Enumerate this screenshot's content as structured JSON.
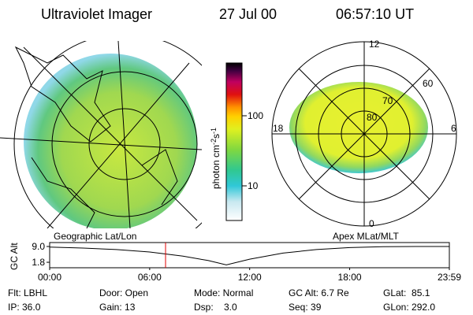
{
  "header": {
    "title": "Ultraviolet Imager",
    "date": "27 Jul 00",
    "time": "06:57:10 UT"
  },
  "colorbar": {
    "unit": [
      "photon cm",
      "-2",
      "s",
      "-1"
    ],
    "ticks": [
      "100",
      "10"
    ]
  },
  "polar": {
    "mlt_labels": [
      "12",
      "18",
      "6",
      "0"
    ],
    "lat_labels": [
      "60",
      "70",
      "80"
    ]
  },
  "panel_labels": [
    "Geographic Lat/Lon",
    "Apex MLat/MLT"
  ],
  "timeline": {
    "ylabel": "GC Alt",
    "xlim": [
      0,
      23.98
    ],
    "ylim": [
      -0.7,
      10.8
    ],
    "yticks": [
      {
        "value": 9,
        "label": "9.0"
      },
      {
        "value": 1.8,
        "label": "1.8"
      }
    ],
    "xticks": [
      {
        "value": 0,
        "label": "00:00"
      },
      {
        "value": 6,
        "label": "06:00"
      },
      {
        "value": 12,
        "label": "12:00"
      },
      {
        "value": 18,
        "label": "18:00"
      },
      {
        "value": 23.98,
        "label": "23:59"
      }
    ],
    "x": [
      0,
      2,
      4,
      6,
      8,
      9.5,
      10.6,
      12,
      14,
      16,
      18,
      20,
      22,
      23.98
    ],
    "values": [
      8.7,
      8.3,
      7.6,
      6.5,
      4.6,
      2.6,
      0.6,
      3.2,
      6.0,
      7.6,
      8.5,
      8.9,
      9.0,
      9.0
    ],
    "current_time": 6.953,
    "marker_color": "#e00000"
  },
  "footer": [
    [
      "Flt: LBHL",
      "Door: Open",
      "Mode: Normal",
      "GC Alt: 6.7 Re",
      "GLat:  85.1"
    ],
    [
      "IP: 36.0",
      "Gain: 13",
      "Dsp:    3.0",
      "Seq: 39",
      "GLon: 292.0"
    ]
  ]
}
